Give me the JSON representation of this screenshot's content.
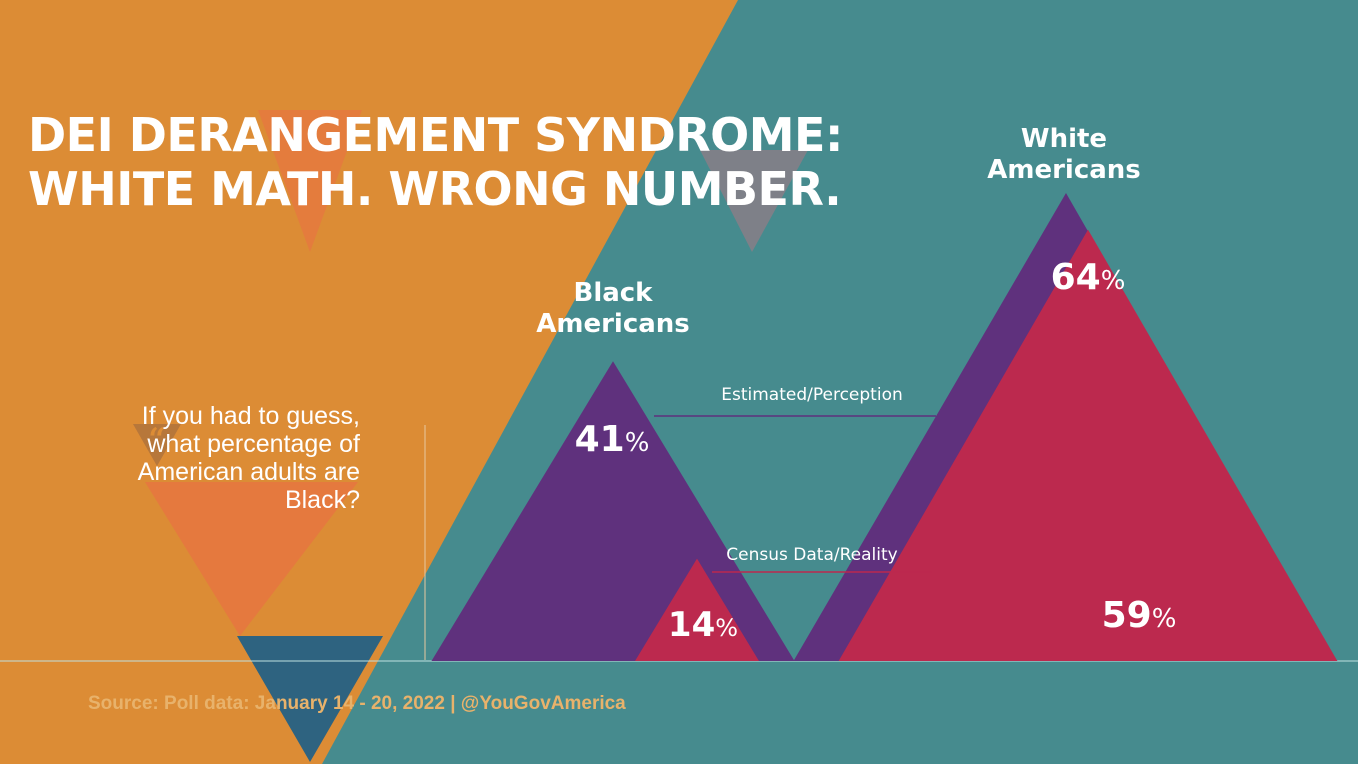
{
  "headline": {
    "line1": "DEI DERANGEMENT SYNDROME:",
    "line2": "WHITE MATH. WRONG NUMBER."
  },
  "question": {
    "quote_mark": "“",
    "text": "If you had to guess, what percentage of American adults are Black?"
  },
  "source": {
    "text": "Source: Poll data: January 14 - 20, 2022 | @YouGovAmerica"
  },
  "colors": {
    "orange": "#dc8c35",
    "teal": "#468b8e",
    "purple": "#5f317d",
    "red": "#bc294e",
    "navy": "#2e6380",
    "soft_orange": "#e5793e",
    "white": "#ffffff"
  },
  "chart_data": {
    "type": "bar",
    "title": "DEI DERANGEMENT SYNDROME: WHITE MATH. WRONG NUMBER.",
    "subtitle": "If you had to guess, what percentage of American adults are Black?",
    "categories": [
      "Black Americans",
      "White Americans"
    ],
    "category_lines": [
      [
        "Black",
        "Americans"
      ],
      [
        "White",
        "Americans"
      ]
    ],
    "series": [
      {
        "name": "Estimated/Perception",
        "values": [
          41,
          64
        ]
      },
      {
        "name": "Census Data/Reality",
        "values": [
          14,
          59
        ]
      }
    ],
    "unit": "%",
    "ylim": [
      0,
      100
    ],
    "xlabel": "",
    "ylabel": ""
  }
}
